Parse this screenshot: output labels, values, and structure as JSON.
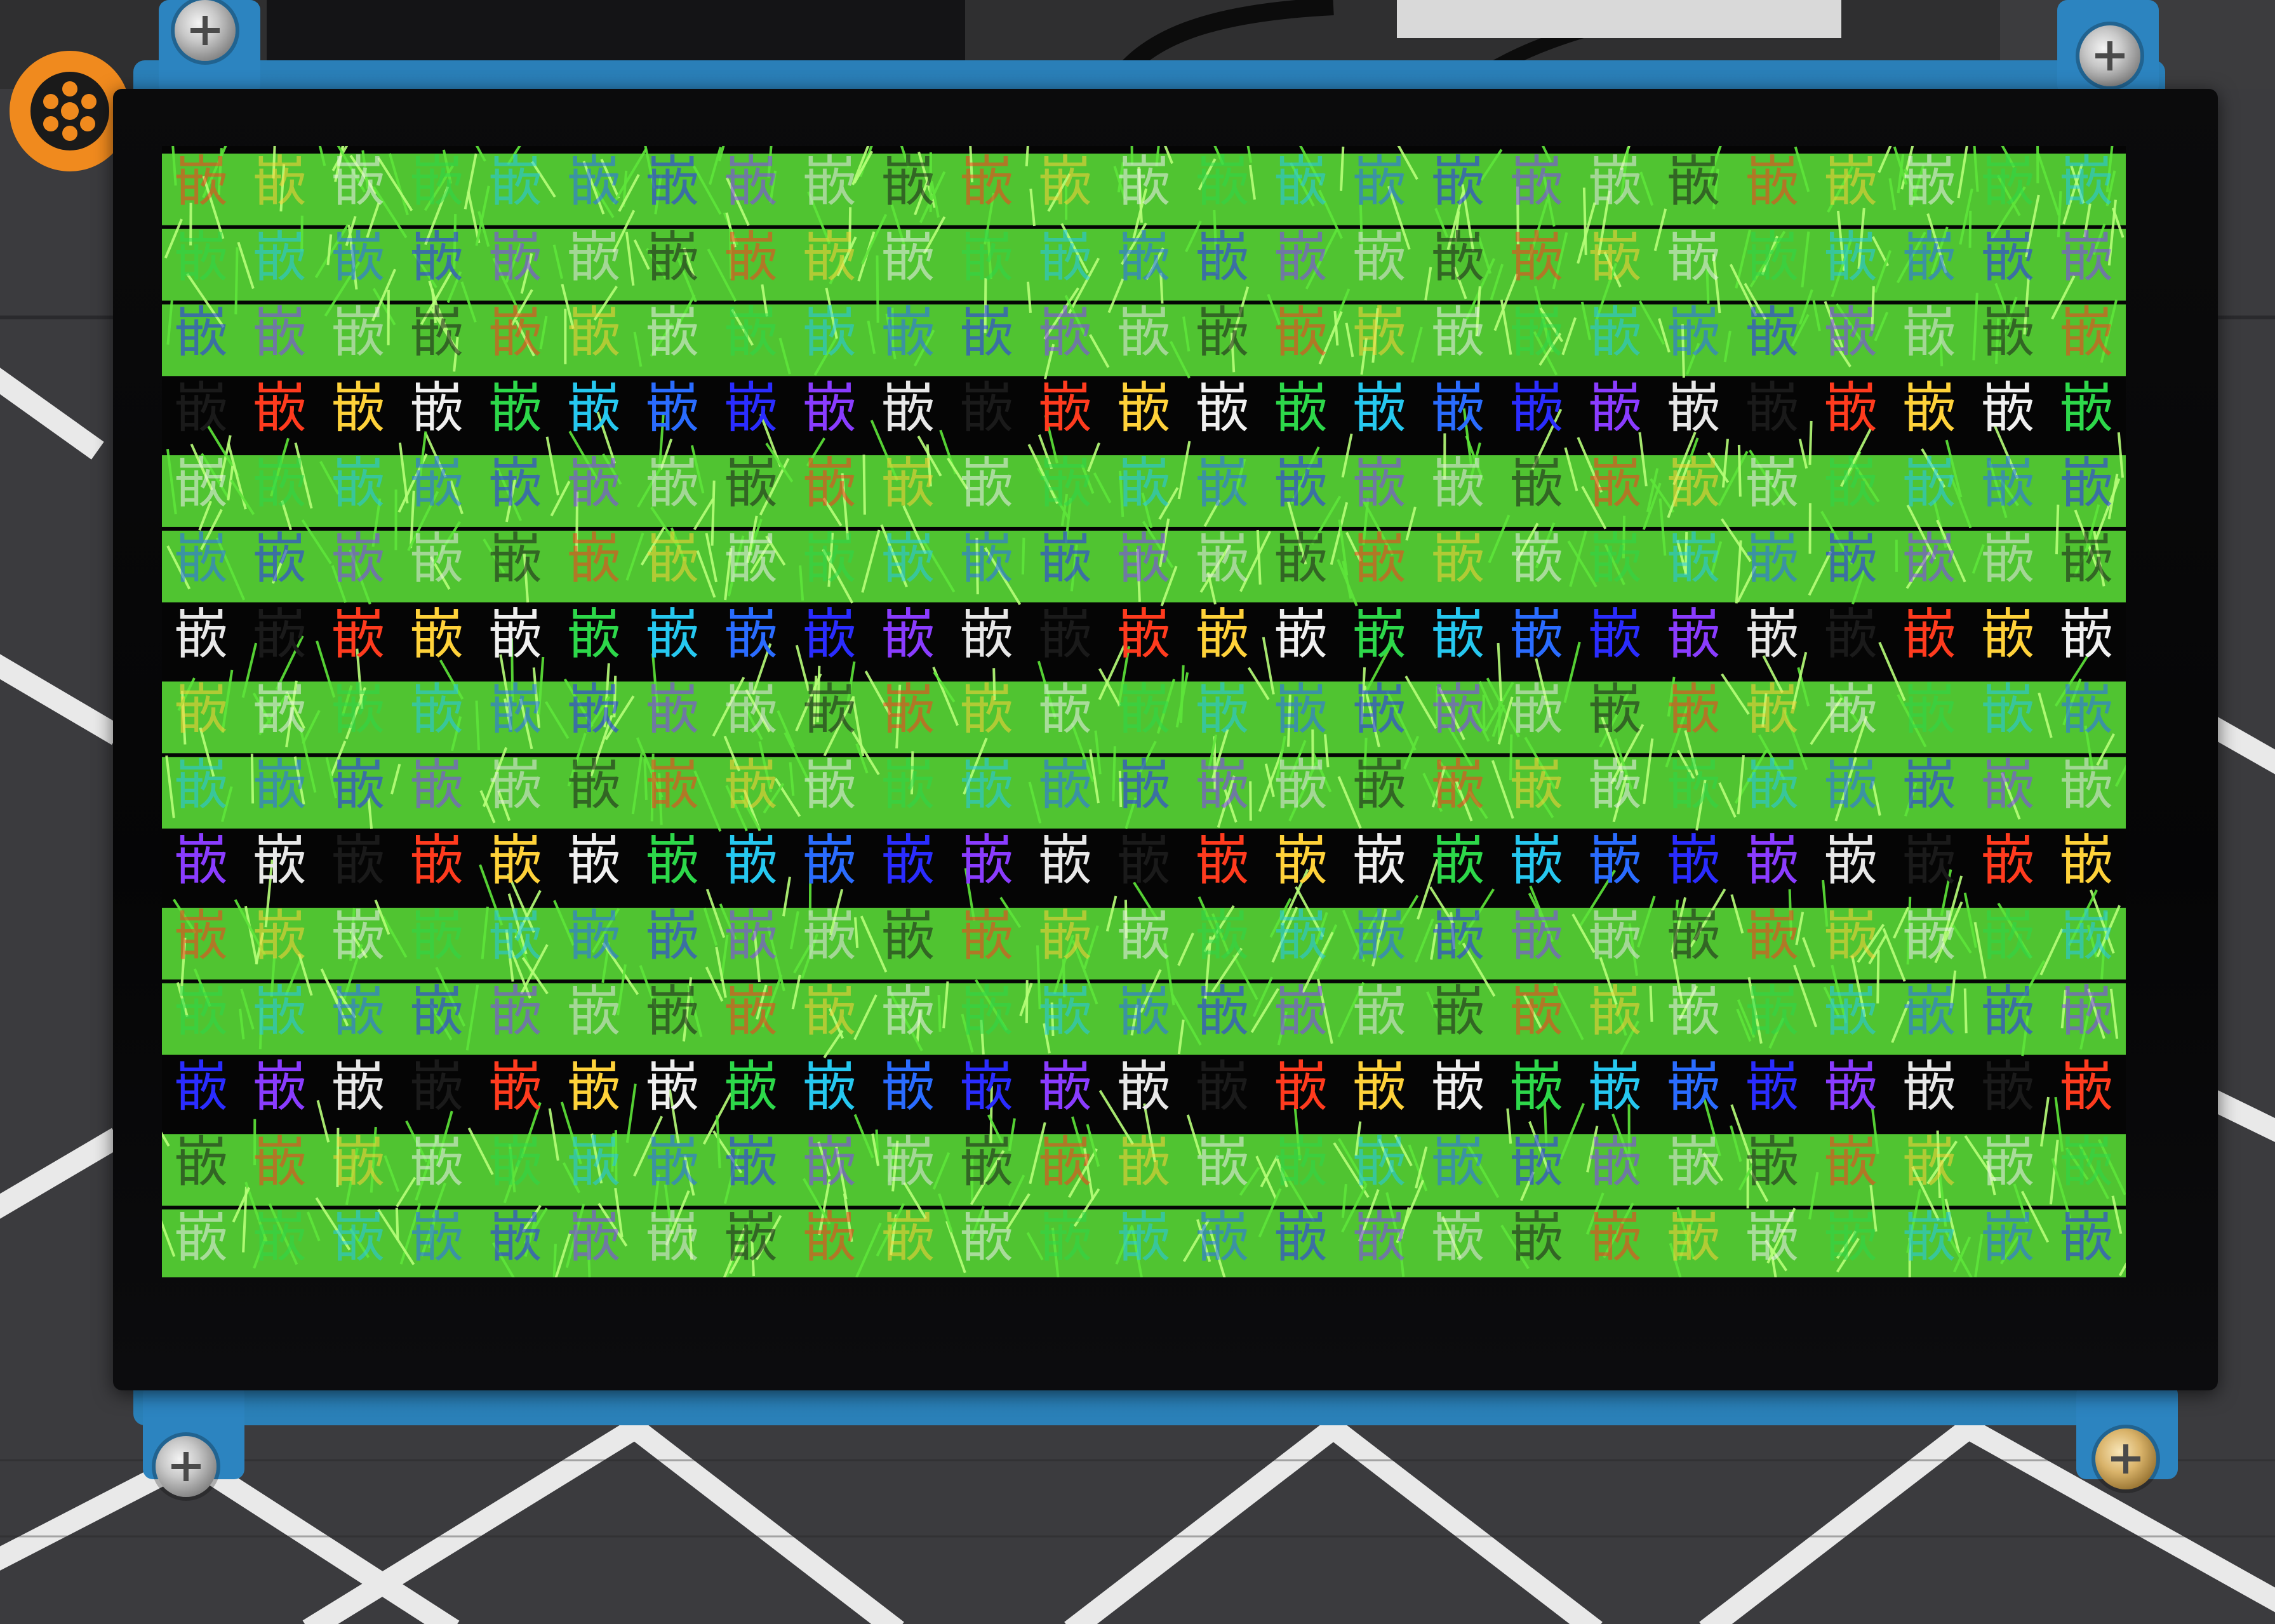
{
  "display": {
    "glyph": "嵌",
    "rows": 15,
    "cols": 25,
    "glyph_colors": [
      "#ff3b1e",
      "#ffd23a",
      "#f0f0f0",
      "#2dd84a",
      "#26c8f0",
      "#2a6cff",
      "#2a2cff",
      "#8a3cff",
      "#e8e8e8",
      "#1a1a1a"
    ],
    "grass_color": "#5ee63a",
    "grass_highlight": "#b8ff7a",
    "background_color": "#050505"
  },
  "hardware": {
    "bezel_color": "#070708",
    "pcb_color": "#2a80b8",
    "screw_color": "#c8c8c8",
    "accent_screw_color": "#d9b36a",
    "rosette_color": "#f08a1e",
    "mat_color": "#3a3a3c",
    "mat_line_color": "#e6e6e6"
  }
}
